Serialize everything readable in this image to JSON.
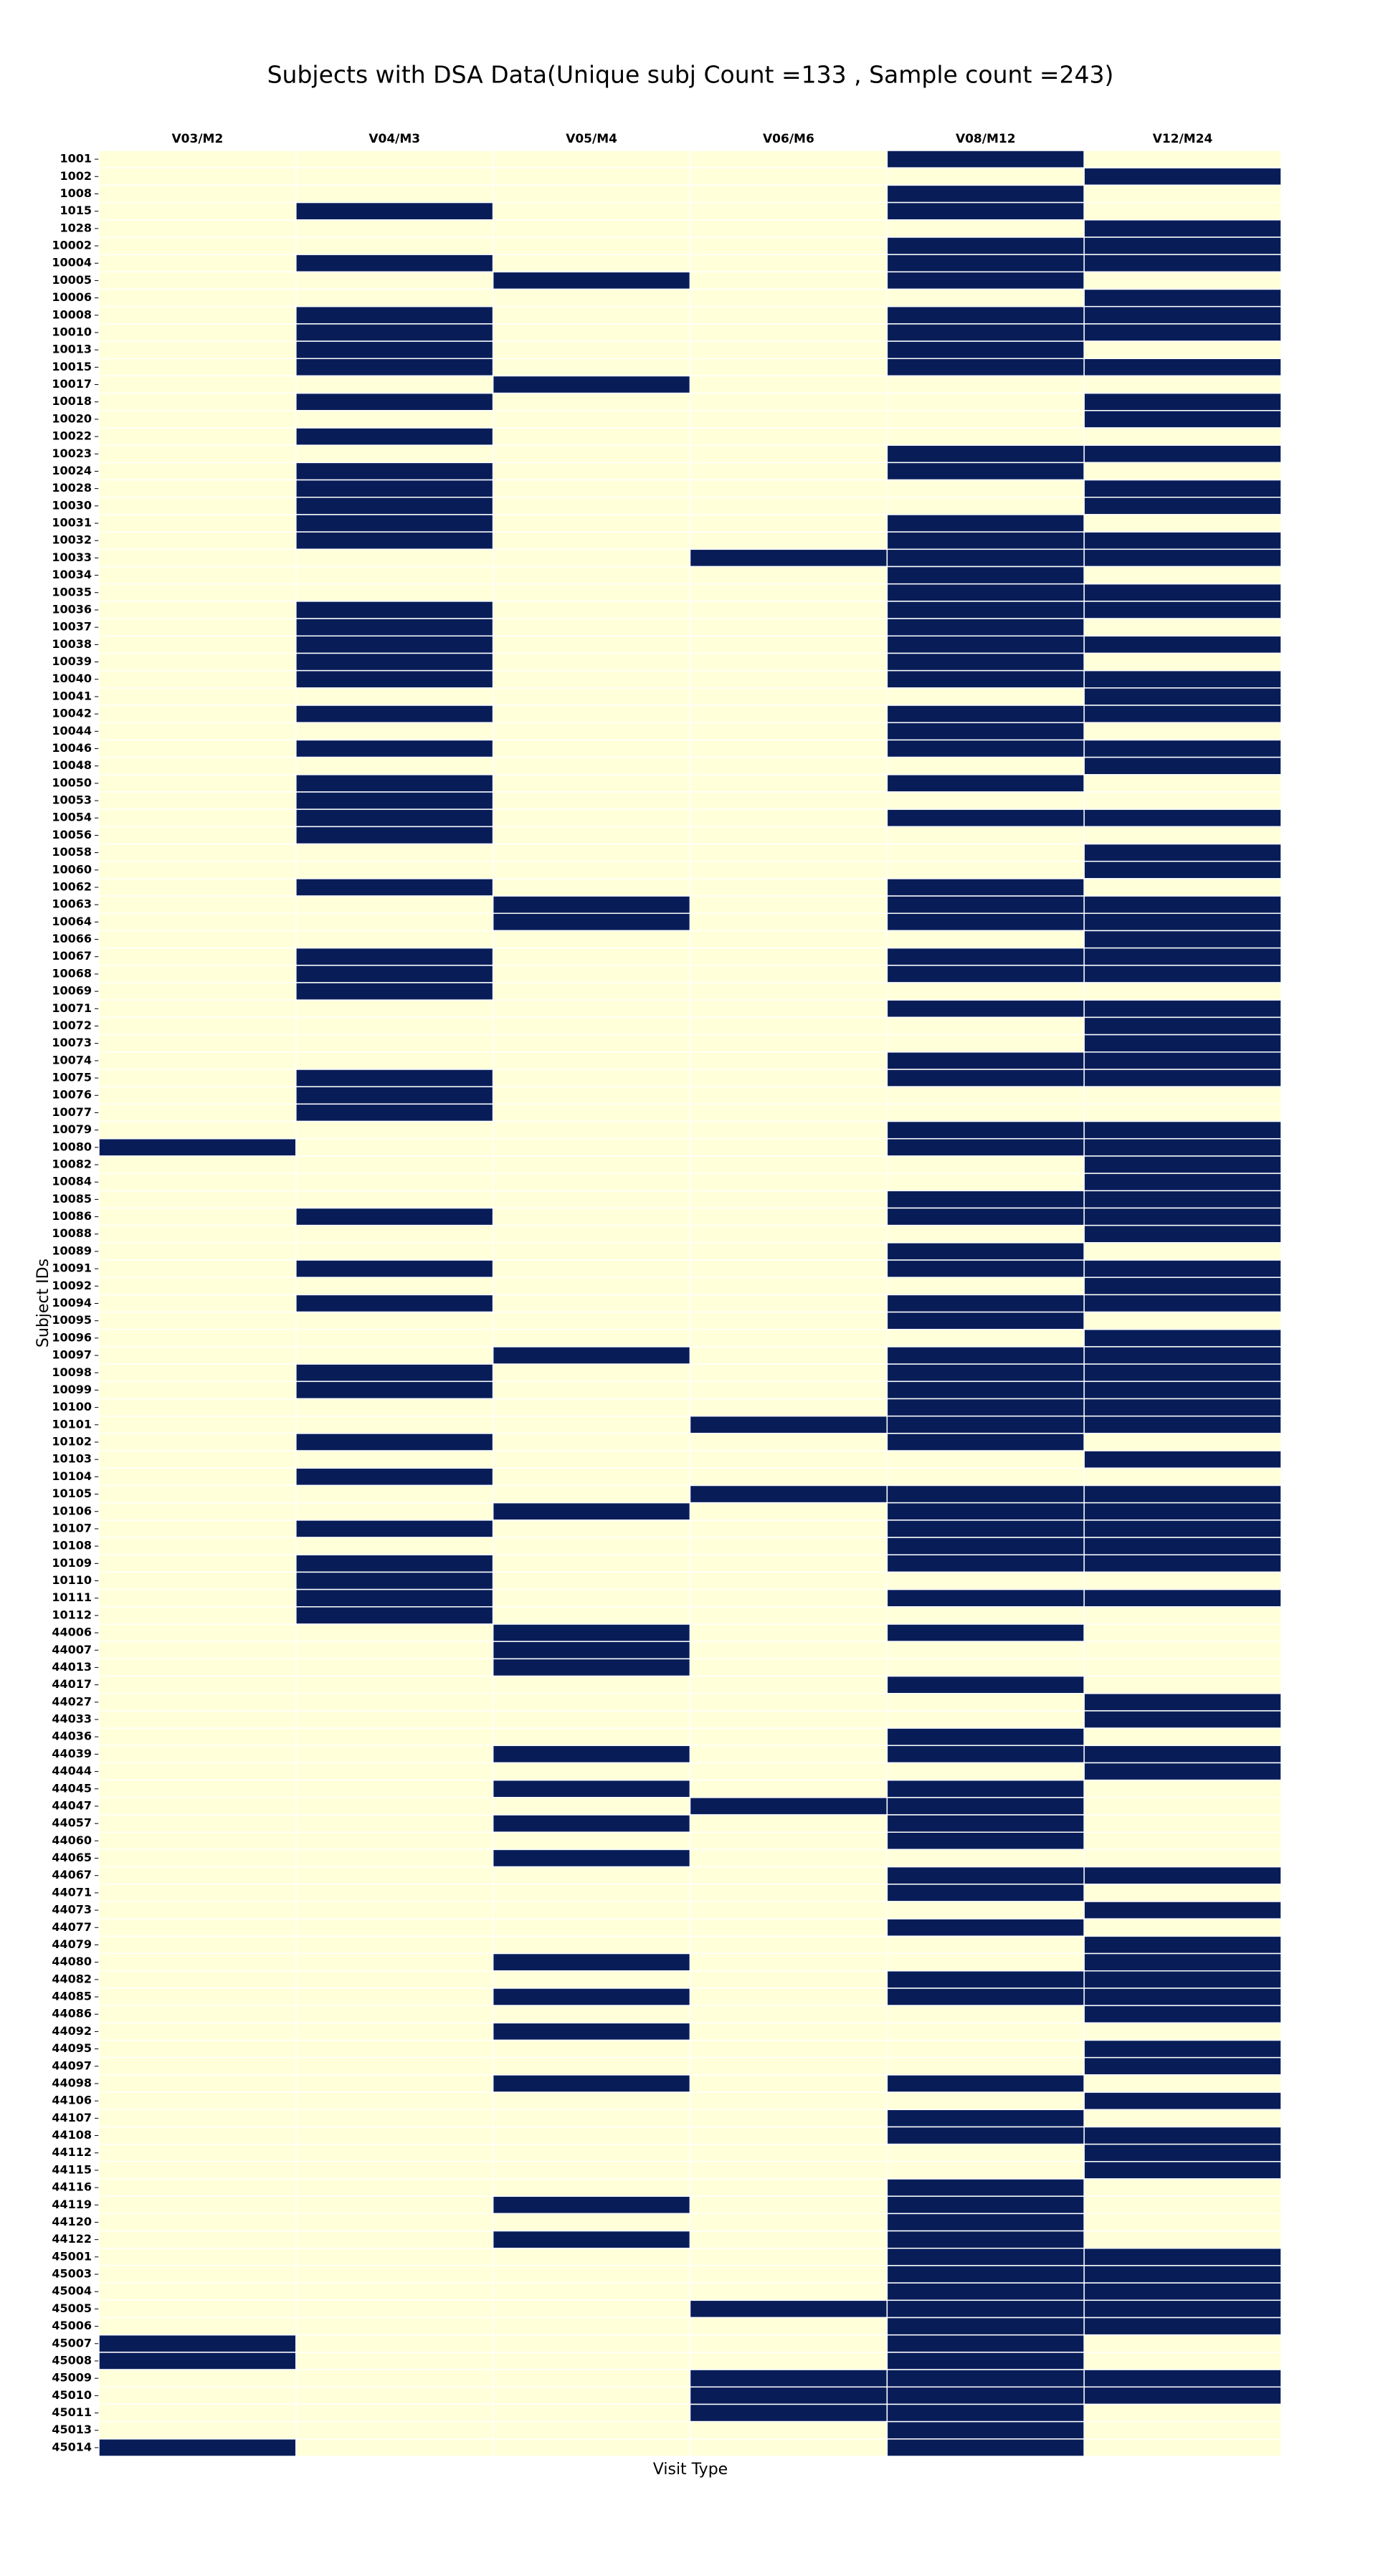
{
  "chart_data": {
    "type": "heatmap",
    "title": "Subjects with DSA Data(Unique subj Count =133 , Sample count =243)",
    "xlabel": "Visit Type",
    "ylabel": "Subject IDs",
    "colors": [
      "#ffffd9",
      "#081d58"
    ],
    "x": [
      "V03/M2",
      "V04/M3",
      "V05/M4",
      "V06/M6",
      "V08/M12",
      "V12/M24"
    ],
    "y": [
      "1001",
      "1002",
      "1008",
      "1015",
      "1028",
      "10002",
      "10004",
      "10005",
      "10006",
      "10008",
      "10010",
      "10013",
      "10015",
      "10017",
      "10018",
      "10020",
      "10022",
      "10023",
      "10024",
      "10028",
      "10030",
      "10031",
      "10032",
      "10033",
      "10034",
      "10035",
      "10036",
      "10037",
      "10038",
      "10039",
      "10040",
      "10041",
      "10042",
      "10044",
      "10046",
      "10048",
      "10050",
      "10053",
      "10054",
      "10056",
      "10058",
      "10060",
      "10062",
      "10063",
      "10064",
      "10066",
      "10067",
      "10068",
      "10069",
      "10071",
      "10072",
      "10073",
      "10074",
      "10075",
      "10076",
      "10077",
      "10079",
      "10080",
      "10082",
      "10084",
      "10085",
      "10086",
      "10088",
      "10089",
      "10091",
      "10092",
      "10094",
      "10095",
      "10096",
      "10097",
      "10098",
      "10099",
      "10100",
      "10101",
      "10102",
      "10103",
      "10104",
      "10105",
      "10106",
      "10107",
      "10108",
      "10109",
      "10110",
      "10111",
      "10112",
      "44006",
      "44007",
      "44013",
      "44017",
      "44027",
      "44033",
      "44036",
      "44039",
      "44044",
      "44045",
      "44047",
      "44057",
      "44060",
      "44065",
      "44067",
      "44071",
      "44073",
      "44077",
      "44079",
      "44080",
      "44082",
      "44085",
      "44086",
      "44092",
      "44095",
      "44097",
      "44098",
      "44106",
      "44107",
      "44108",
      "44112",
      "44115",
      "44116",
      "44119",
      "44120",
      "44122",
      "45001",
      "45003",
      "45004",
      "45005",
      "45006",
      "45007",
      "45008",
      "45009",
      "45010",
      "45011",
      "45013",
      "45014"
    ],
    "values": [
      [
        0,
        0,
        0,
        0,
        1,
        0
      ],
      [
        0,
        0,
        0,
        0,
        0,
        1
      ],
      [
        0,
        0,
        0,
        0,
        1,
        0
      ],
      [
        0,
        1,
        0,
        0,
        1,
        0
      ],
      [
        0,
        0,
        0,
        0,
        0,
        1
      ],
      [
        0,
        0,
        0,
        0,
        1,
        1
      ],
      [
        0,
        1,
        0,
        0,
        1,
        1
      ],
      [
        0,
        0,
        1,
        0,
        1,
        0
      ],
      [
        0,
        0,
        0,
        0,
        0,
        1
      ],
      [
        0,
        1,
        0,
        0,
        1,
        1
      ],
      [
        0,
        1,
        0,
        0,
        1,
        1
      ],
      [
        0,
        1,
        0,
        0,
        1,
        0
      ],
      [
        0,
        1,
        0,
        0,
        1,
        1
      ],
      [
        0,
        0,
        1,
        0,
        0,
        0
      ],
      [
        0,
        1,
        0,
        0,
        0,
        1
      ],
      [
        0,
        0,
        0,
        0,
        0,
        1
      ],
      [
        0,
        1,
        0,
        0,
        0,
        0
      ],
      [
        0,
        0,
        0,
        0,
        1,
        1
      ],
      [
        0,
        1,
        0,
        0,
        1,
        0
      ],
      [
        0,
        1,
        0,
        0,
        0,
        1
      ],
      [
        0,
        1,
        0,
        0,
        0,
        1
      ],
      [
        0,
        1,
        0,
        0,
        1,
        0
      ],
      [
        0,
        1,
        0,
        0,
        1,
        1
      ],
      [
        0,
        0,
        0,
        1,
        1,
        1
      ],
      [
        0,
        0,
        0,
        0,
        1,
        0
      ],
      [
        0,
        0,
        0,
        0,
        1,
        1
      ],
      [
        0,
        1,
        0,
        0,
        1,
        1
      ],
      [
        0,
        1,
        0,
        0,
        1,
        0
      ],
      [
        0,
        1,
        0,
        0,
        1,
        1
      ],
      [
        0,
        1,
        0,
        0,
        1,
        0
      ],
      [
        0,
        1,
        0,
        0,
        1,
        1
      ],
      [
        0,
        0,
        0,
        0,
        0,
        1
      ],
      [
        0,
        1,
        0,
        0,
        1,
        1
      ],
      [
        0,
        0,
        0,
        0,
        1,
        0
      ],
      [
        0,
        1,
        0,
        0,
        1,
        1
      ],
      [
        0,
        0,
        0,
        0,
        0,
        1
      ],
      [
        0,
        1,
        0,
        0,
        1,
        0
      ],
      [
        0,
        1,
        0,
        0,
        0,
        0
      ],
      [
        0,
        1,
        0,
        0,
        1,
        1
      ],
      [
        0,
        1,
        0,
        0,
        0,
        0
      ],
      [
        0,
        0,
        0,
        0,
        0,
        1
      ],
      [
        0,
        0,
        0,
        0,
        0,
        1
      ],
      [
        0,
        1,
        0,
        0,
        1,
        0
      ],
      [
        0,
        0,
        1,
        0,
        1,
        1
      ],
      [
        0,
        0,
        1,
        0,
        1,
        1
      ],
      [
        0,
        0,
        0,
        0,
        0,
        1
      ],
      [
        0,
        1,
        0,
        0,
        1,
        1
      ],
      [
        0,
        1,
        0,
        0,
        1,
        1
      ],
      [
        0,
        1,
        0,
        0,
        0,
        0
      ],
      [
        0,
        0,
        0,
        0,
        1,
        1
      ],
      [
        0,
        0,
        0,
        0,
        0,
        1
      ],
      [
        0,
        0,
        0,
        0,
        0,
        1
      ],
      [
        0,
        0,
        0,
        0,
        1,
        1
      ],
      [
        0,
        1,
        0,
        0,
        1,
        1
      ],
      [
        0,
        1,
        0,
        0,
        0,
        0
      ],
      [
        0,
        1,
        0,
        0,
        0,
        0
      ],
      [
        0,
        0,
        0,
        0,
        1,
        1
      ],
      [
        1,
        0,
        0,
        0,
        1,
        1
      ],
      [
        0,
        0,
        0,
        0,
        0,
        1
      ],
      [
        0,
        0,
        0,
        0,
        0,
        1
      ],
      [
        0,
        0,
        0,
        0,
        1,
        1
      ],
      [
        0,
        1,
        0,
        0,
        1,
        1
      ],
      [
        0,
        0,
        0,
        0,
        0,
        1
      ],
      [
        0,
        0,
        0,
        0,
        1,
        0
      ],
      [
        0,
        1,
        0,
        0,
        1,
        1
      ],
      [
        0,
        0,
        0,
        0,
        0,
        1
      ],
      [
        0,
        1,
        0,
        0,
        1,
        1
      ],
      [
        0,
        0,
        0,
        0,
        1,
        0
      ],
      [
        0,
        0,
        0,
        0,
        0,
        1
      ],
      [
        0,
        0,
        1,
        0,
        1,
        1
      ],
      [
        0,
        1,
        0,
        0,
        1,
        1
      ],
      [
        0,
        1,
        0,
        0,
        1,
        1
      ],
      [
        0,
        0,
        0,
        0,
        1,
        1
      ],
      [
        0,
        0,
        0,
        1,
        1,
        1
      ],
      [
        0,
        1,
        0,
        0,
        1,
        0
      ],
      [
        0,
        0,
        0,
        0,
        0,
        1
      ],
      [
        0,
        1,
        0,
        0,
        0,
        0
      ],
      [
        0,
        0,
        0,
        1,
        1,
        1
      ],
      [
        0,
        0,
        1,
        0,
        1,
        1
      ],
      [
        0,
        1,
        0,
        0,
        1,
        1
      ],
      [
        0,
        0,
        0,
        0,
        1,
        1
      ],
      [
        0,
        1,
        0,
        0,
        1,
        1
      ],
      [
        0,
        1,
        0,
        0,
        0,
        0
      ],
      [
        0,
        1,
        0,
        0,
        1,
        1
      ],
      [
        0,
        1,
        0,
        0,
        0,
        0
      ],
      [
        0,
        0,
        1,
        0,
        1,
        0
      ],
      [
        0,
        0,
        1,
        0,
        0,
        0
      ],
      [
        0,
        0,
        1,
        0,
        0,
        0
      ],
      [
        0,
        0,
        0,
        0,
        1,
        0
      ],
      [
        0,
        0,
        0,
        0,
        0,
        1
      ],
      [
        0,
        0,
        0,
        0,
        0,
        1
      ],
      [
        0,
        0,
        0,
        0,
        1,
        0
      ],
      [
        0,
        0,
        1,
        0,
        1,
        1
      ],
      [
        0,
        0,
        0,
        0,
        0,
        1
      ],
      [
        0,
        0,
        1,
        0,
        1,
        0
      ],
      [
        0,
        0,
        0,
        1,
        1,
        0
      ],
      [
        0,
        0,
        1,
        0,
        1,
        0
      ],
      [
        0,
        0,
        0,
        0,
        1,
        0
      ],
      [
        0,
        0,
        1,
        0,
        0,
        0
      ],
      [
        0,
        0,
        0,
        0,
        1,
        1
      ],
      [
        0,
        0,
        0,
        0,
        1,
        0
      ],
      [
        0,
        0,
        0,
        0,
        0,
        1
      ],
      [
        0,
        0,
        0,
        0,
        1,
        0
      ],
      [
        0,
        0,
        0,
        0,
        0,
        1
      ],
      [
        0,
        0,
        1,
        0,
        0,
        1
      ],
      [
        0,
        0,
        0,
        0,
        1,
        1
      ],
      [
        0,
        0,
        1,
        0,
        1,
        1
      ],
      [
        0,
        0,
        0,
        0,
        0,
        1
      ],
      [
        0,
        0,
        1,
        0,
        0,
        0
      ],
      [
        0,
        0,
        0,
        0,
        0,
        1
      ],
      [
        0,
        0,
        0,
        0,
        0,
        1
      ],
      [
        0,
        0,
        1,
        0,
        1,
        0
      ],
      [
        0,
        0,
        0,
        0,
        0,
        1
      ],
      [
        0,
        0,
        0,
        0,
        1,
        0
      ],
      [
        0,
        0,
        0,
        0,
        1,
        1
      ],
      [
        0,
        0,
        0,
        0,
        0,
        1
      ],
      [
        0,
        0,
        0,
        0,
        0,
        1
      ],
      [
        0,
        0,
        0,
        0,
        1,
        0
      ],
      [
        0,
        0,
        1,
        0,
        1,
        0
      ],
      [
        0,
        0,
        0,
        0,
        1,
        0
      ],
      [
        0,
        0,
        1,
        0,
        1,
        0
      ],
      [
        0,
        0,
        0,
        0,
        1,
        1
      ],
      [
        0,
        0,
        0,
        0,
        1,
        1
      ],
      [
        0,
        0,
        0,
        0,
        1,
        1
      ],
      [
        0,
        0,
        0,
        1,
        1,
        1
      ],
      [
        0,
        0,
        0,
        0,
        1,
        1
      ],
      [
        1,
        0,
        0,
        0,
        1,
        0
      ],
      [
        1,
        0,
        0,
        0,
        1,
        0
      ],
      [
        0,
        0,
        0,
        1,
        1,
        1
      ],
      [
        0,
        0,
        0,
        1,
        1,
        1
      ],
      [
        0,
        0,
        0,
        1,
        1,
        0
      ],
      [
        0,
        0,
        0,
        0,
        1,
        0
      ],
      [
        1,
        0,
        0,
        0,
        1,
        0
      ]
    ]
  }
}
